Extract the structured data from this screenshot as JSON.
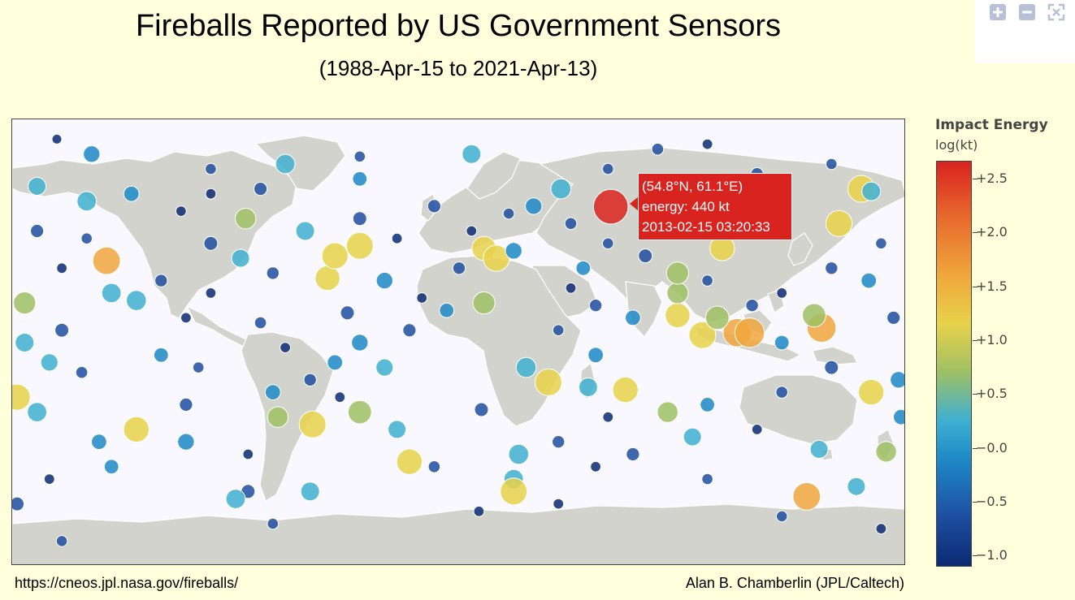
{
  "title": "Fireballs Reported by US Government Sensors",
  "subtitle": "(1988-Apr-15 to 2021-Apr-13)",
  "toolbar": {
    "zoom_in_icon": "plus-icon",
    "zoom_out_icon": "minus-icon",
    "reset_icon": "autoscale-icon"
  },
  "tooltip": {
    "coords": "(54.8°N, 61.1°E)",
    "energy": "energy: 440 kt",
    "datetime": "2013-02-15 03:20:33"
  },
  "colorbar": {
    "title": "Impact Energy",
    "subtitle": "log(kt)",
    "ticks": [
      "+2.5",
      "+2.0",
      "+1.5",
      "+1.0",
      "+0.5",
      "−0.0",
      "−0.5",
      "−1.0"
    ],
    "colors": [
      "#0a2a72",
      "#1e4ea0",
      "#1d88c6",
      "#3fb0d0",
      "#9fc064",
      "#e8d24a",
      "#f0a63c",
      "#e86a2d",
      "#d9231f"
    ]
  },
  "footer": {
    "source": "https://cneos.jpl.nasa.gov/fireballs/",
    "credit": "Alan B. Chamberlin (JPL/Caltech)"
  },
  "map_data": {
    "lon_range": [
      -180,
      180
    ],
    "lat_range": [
      -90,
      90
    ],
    "highlight": {
      "lat": 54.8,
      "lon": 61.1,
      "log_energy": 2.64
    },
    "fireballs": [
      {
        "lat": 82,
        "lon": -162,
        "e": -1.0
      },
      {
        "lat": 76,
        "lon": -148,
        "e": 0.0
      },
      {
        "lat": 60,
        "lon": -132,
        "e": -0.2
      },
      {
        "lat": 70,
        "lon": -100,
        "e": -0.8
      },
      {
        "lat": 60,
        "lon": -100,
        "e": -0.9
      },
      {
        "lat": 72,
        "lon": -70,
        "e": 0.4
      },
      {
        "lat": 53,
        "lon": -112,
        "e": -0.9
      },
      {
        "lat": 50,
        "lon": -86,
        "e": 0.6
      },
      {
        "lat": 45,
        "lon": -62,
        "e": 0.3
      },
      {
        "lat": 40,
        "lon": -100,
        "e": -0.4
      },
      {
        "lat": 34,
        "lon": -88,
        "e": 0.2
      },
      {
        "lat": 26,
        "lon": -53,
        "e": 1.2
      },
      {
        "lat": 35,
        "lon": -50,
        "e": 1.4
      },
      {
        "lat": 39,
        "lon": -40,
        "e": 1.5
      },
      {
        "lat": 33,
        "lon": -142,
        "e": 1.6
      },
      {
        "lat": 16,
        "lon": -175,
        "e": 0.8
      },
      {
        "lat": 20,
        "lon": -140,
        "e": 0.4
      },
      {
        "lat": 17,
        "lon": -130,
        "e": 0.5
      },
      {
        "lat": 0,
        "lon": -40,
        "e": 0.0
      },
      {
        "lat": -15,
        "lon": -60,
        "e": -0.6
      },
      {
        "lat": -20,
        "lon": -75,
        "e": -0.2
      },
      {
        "lat": -28,
        "lon": -40,
        "e": 1.0
      },
      {
        "lat": -33,
        "lon": -59,
        "e": 1.5
      },
      {
        "lat": -30,
        "lon": -73,
        "e": 0.6
      },
      {
        "lat": -22,
        "lon": -178,
        "e": 1.4
      },
      {
        "lat": -35,
        "lon": -130,
        "e": 1.3
      },
      {
        "lat": -28,
        "lon": -170,
        "e": 0.4
      },
      {
        "lat": -40,
        "lon": -145,
        "e": -0.2
      },
      {
        "lat": -48,
        "lon": -20,
        "e": 1.3
      },
      {
        "lat": -60,
        "lon": -60,
        "e": 0.3
      },
      {
        "lat": -60,
        "lon": -85,
        "e": -0.4
      },
      {
        "lat": -73,
        "lon": -75,
        "e": -0.8
      },
      {
        "lat": -63,
        "lon": -90,
        "e": 0.4
      },
      {
        "lat": -55,
        "lon": 22,
        "e": 0.4
      },
      {
        "lat": -60,
        "lon": 22,
        "e": 1.5
      },
      {
        "lat": -45,
        "lon": 24,
        "e": 0.5
      },
      {
        "lat": -16,
        "lon": 36,
        "e": 1.5
      },
      {
        "lat": -18,
        "lon": 52,
        "e": 0.3
      },
      {
        "lat": -19,
        "lon": 67,
        "e": 1.3
      },
      {
        "lat": -28,
        "lon": 84,
        "e": 0.6
      },
      {
        "lat": -38,
        "lon": 94,
        "e": 0.2
      },
      {
        "lat": -62,
        "lon": 140,
        "e": 1.6
      },
      {
        "lat": -43,
        "lon": 145,
        "e": 0.2
      },
      {
        "lat": -44,
        "lon": 172,
        "e": 0.6
      },
      {
        "lat": -20,
        "lon": 166,
        "e": 1.3
      },
      {
        "lat": -15,
        "lon": 177,
        "e": 0.0
      },
      {
        "lat": 3,
        "lon": 98,
        "e": 1.5
      },
      {
        "lat": 4,
        "lon": 112,
        "e": 1.7
      },
      {
        "lat": 4,
        "lon": 117,
        "e": 1.9
      },
      {
        "lat": 10,
        "lon": 104,
        "e": 1.0
      },
      {
        "lat": 11,
        "lon": 88,
        "e": 1.2
      },
      {
        "lat": 10,
        "lon": 70,
        "e": -0.2
      },
      {
        "lat": 20,
        "lon": 88,
        "e": 0.7
      },
      {
        "lat": 28,
        "lon": 88,
        "e": 0.8
      },
      {
        "lat": 38,
        "lon": 106,
        "e": 1.2
      },
      {
        "lat": 48,
        "lon": 153,
        "e": 1.4
      },
      {
        "lat": 6,
        "lon": 146,
        "e": 1.8
      },
      {
        "lat": 11,
        "lon": 143,
        "e": 1.0
      },
      {
        "lat": 62,
        "lon": 162,
        "e": 1.5
      },
      {
        "lat": 61,
        "lon": 166,
        "e": 0.3
      },
      {
        "lat": 61,
        "lon": 108,
        "e": 0.1
      },
      {
        "lat": 70,
        "lon": 60,
        "e": -0.8
      },
      {
        "lat": 62,
        "lon": 41,
        "e": 0.5
      },
      {
        "lat": 80,
        "lon": 100,
        "e": -0.9
      },
      {
        "lat": 78,
        "lon": 80,
        "e": -0.7
      },
      {
        "lat": 76,
        "lon": 5,
        "e": 0.3
      },
      {
        "lat": 38,
        "lon": 10,
        "e": 1.1
      },
      {
        "lat": 34,
        "lon": 15,
        "e": 1.4
      },
      {
        "lat": 37,
        "lon": 22,
        "e": 0.0
      },
      {
        "lat": 16,
        "lon": 10,
        "e": 0.8
      },
      {
        "lat": -10,
        "lon": 27,
        "e": 0.5
      },
      {
        "lat": -27,
        "lon": 9,
        "e": -0.4
      },
      {
        "lat": -35,
        "lon": -25,
        "e": 0.2
      },
      {
        "lat": 13,
        "lon": -5,
        "e": -0.3
      },
      {
        "lat": 25,
        "lon": -30,
        "e": 0.0
      },
      {
        "lat": 50,
        "lon": -40,
        "e": -0.4
      },
      {
        "lat": 57,
        "lon": -150,
        "e": 0.4
      },
      {
        "lat": 63,
        "lon": -170,
        "e": 0.2
      },
      {
        "lat": 0,
        "lon": -175,
        "e": 0.3
      },
      {
        "lat": 5,
        "lon": -160,
        "e": -0.4
      },
      {
        "lat": -8,
        "lon": -165,
        "e": 0.1
      },
      {
        "lat": -12,
        "lon": -152,
        "e": -0.7
      },
      {
        "lat": 45,
        "lon": -170,
        "e": -0.5
      },
      {
        "lat": 42,
        "lon": -150,
        "e": -0.8
      },
      {
        "lat": 30,
        "lon": -160,
        "e": -0.9
      },
      {
        "lat": 25,
        "lon": -120,
        "e": -0.6
      },
      {
        "lat": 10,
        "lon": -110,
        "e": -0.9
      },
      {
        "lat": -5,
        "lon": -120,
        "e": -0.3
      },
      {
        "lat": -10,
        "lon": -105,
        "e": -0.8
      },
      {
        "lat": -25,
        "lon": -110,
        "e": -0.5
      },
      {
        "lat": -40,
        "lon": -110,
        "e": 0.0
      },
      {
        "lat": -50,
        "lon": -140,
        "e": -0.3
      },
      {
        "lat": -55,
        "lon": -165,
        "e": -0.9
      },
      {
        "lat": -65,
        "lon": -178,
        "e": -0.4
      },
      {
        "lat": 8,
        "lon": -80,
        "e": -0.7
      },
      {
        "lat": -2,
        "lon": -70,
        "e": -0.9
      },
      {
        "lat": -8,
        "lon": -50,
        "e": -0.2
      },
      {
        "lat": -22,
        "lon": -48,
        "e": -0.9
      },
      {
        "lat": -10,
        "lon": -30,
        "e": 0.1
      },
      {
        "lat": 5,
        "lon": -20,
        "e": -0.5
      },
      {
        "lat": 18,
        "lon": -15,
        "e": -0.9
      },
      {
        "lat": 30,
        "lon": 0,
        "e": -0.6
      },
      {
        "lat": 45,
        "lon": 5,
        "e": -0.9
      },
      {
        "lat": 52,
        "lon": 20,
        "e": -0.8
      },
      {
        "lat": 55,
        "lon": 30,
        "e": 0.0
      },
      {
        "lat": 48,
        "lon": 45,
        "e": -0.7
      },
      {
        "lat": 40,
        "lon": 60,
        "e": -0.8
      },
      {
        "lat": 30,
        "lon": 50,
        "e": -0.3
      },
      {
        "lat": 22,
        "lon": 45,
        "e": -0.9
      },
      {
        "lat": 15,
        "lon": 55,
        "e": -0.6
      },
      {
        "lat": 5,
        "lon": 40,
        "e": -0.8
      },
      {
        "lat": -5,
        "lon": 55,
        "e": -0.2
      },
      {
        "lat": -30,
        "lon": 60,
        "e": -0.9
      },
      {
        "lat": -45,
        "lon": 70,
        "e": -0.5
      },
      {
        "lat": -55,
        "lon": 100,
        "e": -0.8
      },
      {
        "lat": -35,
        "lon": 120,
        "e": -0.9
      },
      {
        "lat": -20,
        "lon": 130,
        "e": -0.7
      },
      {
        "lat": -10,
        "lon": 150,
        "e": -0.4
      },
      {
        "lat": 20,
        "lon": 130,
        "e": -0.9
      },
      {
        "lat": 30,
        "lon": 150,
        "e": -0.6
      },
      {
        "lat": 40,
        "lon": 170,
        "e": -0.8
      },
      {
        "lat": 25,
        "lon": 165,
        "e": -0.2
      },
      {
        "lat": 10,
        "lon": 175,
        "e": -0.5
      },
      {
        "lat": 50,
        "lon": 125,
        "e": -0.9
      },
      {
        "lat": 45,
        "lon": 90,
        "e": -0.7
      },
      {
        "lat": 35,
        "lon": 75,
        "e": -0.4
      },
      {
        "lat": 60,
        "lon": 85,
        "e": -0.9
      },
      {
        "lat": 68,
        "lon": 120,
        "e": -0.6
      },
      {
        "lat": 72,
        "lon": 150,
        "e": -0.8
      },
      {
        "lat": 66,
        "lon": -40,
        "e": -0.3
      },
      {
        "lat": 75,
        "lon": -40,
        "e": -0.8
      },
      {
        "lat": 62,
        "lon": -80,
        "e": -0.5
      },
      {
        "lat": 20,
        "lon": -100,
        "e": -0.9
      },
      {
        "lat": 28,
        "lon": -75,
        "e": -0.6
      },
      {
        "lat": -45,
        "lon": -85,
        "e": -0.9
      },
      {
        "lat": -50,
        "lon": -10,
        "e": -0.7
      },
      {
        "lat": -65,
        "lon": 40,
        "e": -0.9
      },
      {
        "lat": -70,
        "lon": 130,
        "e": -0.8
      },
      {
        "lat": -75,
        "lon": 170,
        "e": -0.9
      },
      {
        "lat": -80,
        "lon": -160,
        "e": -0.8
      },
      {
        "lat": -68,
        "lon": 8,
        "e": -0.9
      },
      {
        "lat": -58,
        "lon": 160,
        "e": 0.2
      },
      {
        "lat": -30,
        "lon": 178,
        "e": -0.2
      },
      {
        "lat": 0,
        "lon": 130,
        "e": -0.3
      },
      {
        "lat": 15,
        "lon": 118,
        "e": -0.6
      },
      {
        "lat": 25,
        "lon": 100,
        "e": -0.8
      },
      {
        "lat": 55,
        "lon": -10,
        "e": -0.5
      },
      {
        "lat": 42,
        "lon": -25,
        "e": -0.9
      },
      {
        "lat": 12,
        "lon": -45,
        "e": -0.4
      },
      {
        "lat": -40,
        "lon": 40,
        "e": -0.6
      },
      {
        "lat": -50,
        "lon": 55,
        "e": -0.9
      },
      {
        "lat": -25,
        "lon": 100,
        "e": -0.3
      }
    ]
  }
}
